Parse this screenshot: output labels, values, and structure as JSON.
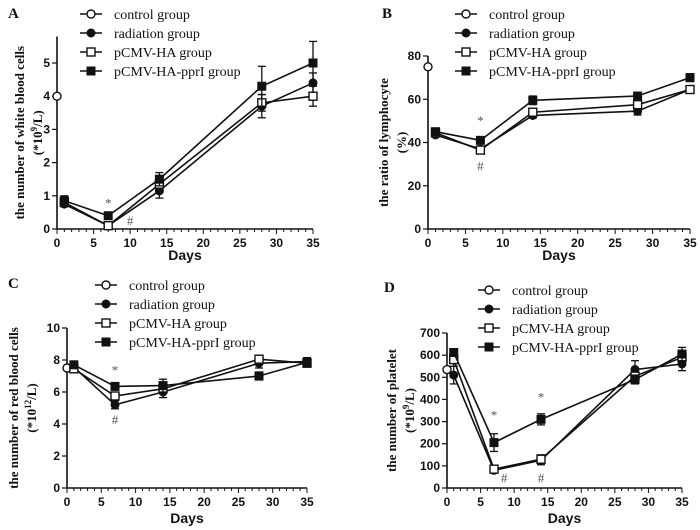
{
  "figure": {
    "legend": [
      "control group",
      "radiation group",
      "pCMV-HA group",
      "pCMV-HA-pprI group"
    ],
    "marker_styles": [
      "open-circle",
      "filled-circle",
      "open-square",
      "filled-square"
    ]
  },
  "chart_data": [
    {
      "panel": "A",
      "type": "line",
      "title": "",
      "xlabel": "Days",
      "ylabel_line1": "the number of white blood cells",
      "ylabel_line2": "(*10",
      "ylabel_sup": "9",
      "ylabel_tail": "/L)",
      "xlim": [
        0,
        35
      ],
      "ylim": [
        0,
        5.8
      ],
      "xticks": [
        0,
        5,
        10,
        15,
        20,
        25,
        30,
        35
      ],
      "yticks": [
        0,
        1,
        2,
        3,
        4,
        5
      ],
      "grid": false,
      "legend_position": "top-center",
      "series": [
        {
          "name": "control group",
          "x": [
            0
          ],
          "values": [
            4.0
          ],
          "err": [
            0
          ]
        },
        {
          "name": "radiation group",
          "x": [
            1,
            7,
            14,
            28,
            35
          ],
          "values": [
            0.75,
            0.1,
            1.15,
            3.7,
            4.4
          ],
          "err": [
            0.08,
            0.05,
            0.22,
            0.35,
            0.3
          ]
        },
        {
          "name": "pCMV-HA group",
          "x": [
            1,
            7,
            14,
            28,
            35
          ],
          "values": [
            0.8,
            0.1,
            1.35,
            3.8,
            4.0
          ],
          "err": [
            0.1,
            0.05,
            0.2,
            0.25,
            0.3
          ]
        },
        {
          "name": "pCMV-HA-pprI group",
          "x": [
            1,
            7,
            14,
            28,
            35
          ],
          "values": [
            0.85,
            0.4,
            1.5,
            4.3,
            5.0
          ],
          "err": [
            0.15,
            0.05,
            0.2,
            0.6,
            0.65
          ]
        }
      ],
      "annotations": [
        {
          "text": "*",
          "x": 7,
          "y": 0.65
        },
        {
          "text": "#",
          "x": 10,
          "y": 0.12
        }
      ]
    },
    {
      "panel": "B",
      "type": "line",
      "title": "",
      "xlabel": "Days",
      "ylabel_line1": "the ratio of lymphocyte",
      "ylabel_line2": "(%)",
      "ylabel_sup": "",
      "ylabel_tail": "",
      "xlim": [
        0,
        35
      ],
      "ylim": [
        0,
        80
      ],
      "xticks": [
        0,
        5,
        10,
        15,
        20,
        25,
        30,
        35
      ],
      "yticks": [
        0,
        20,
        40,
        60,
        80
      ],
      "grid": false,
      "legend_position": "top-center",
      "series": [
        {
          "name": "control group",
          "x": [
            0
          ],
          "values": [
            75
          ],
          "err": [
            0
          ]
        },
        {
          "name": "radiation group",
          "x": [
            1,
            7,
            14,
            28,
            35
          ],
          "values": [
            43.5,
            37,
            52.5,
            54.5,
            64.5
          ],
          "err": [
            1,
            1,
            1.2,
            1.8,
            1
          ]
        },
        {
          "name": "pCMV-HA group",
          "x": [
            1,
            7,
            14,
            28,
            35
          ],
          "values": [
            44.5,
            36.5,
            54,
            57.5,
            64.5
          ],
          "err": [
            1,
            1,
            1.5,
            1.5,
            1
          ]
        },
        {
          "name": "pCMV-HA-pprI group",
          "x": [
            1,
            7,
            14,
            28,
            35
          ],
          "values": [
            45,
            41,
            59.5,
            61.5,
            70
          ],
          "err": [
            1.2,
            1.2,
            2,
            1.2,
            1.8
          ]
        }
      ],
      "annotations": [
        {
          "text": "*",
          "x": 7,
          "y": 48
        },
        {
          "text": "#",
          "x": 7,
          "y": 27
        }
      ]
    },
    {
      "panel": "C",
      "type": "line",
      "title": "",
      "xlabel": "Days",
      "ylabel_line1": "the number of red blood cells",
      "ylabel_line2": "(*10",
      "ylabel_sup": "12",
      "ylabel_tail": "/L)",
      "xlim": [
        0,
        35
      ],
      "ylim": [
        0,
        10
      ],
      "xticks": [
        0,
        5,
        10,
        15,
        20,
        25,
        30,
        35
      ],
      "yticks": [
        0,
        2,
        4,
        6,
        8,
        10
      ],
      "grid": false,
      "legend_position": "top-center",
      "series": [
        {
          "name": "control group",
          "x": [
            0
          ],
          "values": [
            7.5
          ],
          "err": [
            0
          ]
        },
        {
          "name": "radiation group",
          "x": [
            1,
            7,
            14,
            28,
            35
          ],
          "values": [
            7.55,
            5.2,
            6.0,
            7.8,
            7.9
          ],
          "err": [
            0.1,
            0.25,
            0.35,
            0.3,
            0.25
          ]
        },
        {
          "name": "pCMV-HA group",
          "x": [
            1,
            7,
            14,
            28,
            35
          ],
          "values": [
            7.45,
            5.75,
            6.2,
            8.05,
            7.8
          ],
          "err": [
            0.1,
            0.12,
            0.2,
            0.12,
            0.15
          ]
        },
        {
          "name": "pCMV-HA-pprI group",
          "x": [
            1,
            7,
            14,
            28,
            35
          ],
          "values": [
            7.7,
            6.35,
            6.4,
            7.0,
            7.85
          ],
          "err": [
            0.1,
            0.1,
            0.4,
            0.25,
            0.2
          ]
        }
      ],
      "annotations": [
        {
          "text": "*",
          "x": 7,
          "y": 7.1
        },
        {
          "text": "#",
          "x": 7,
          "y": 4.0
        }
      ]
    },
    {
      "panel": "D",
      "type": "line",
      "title": "",
      "xlabel": "Days",
      "ylabel_line1": "the number of platelet",
      "ylabel_line2": "(*10",
      "ylabel_sup": "9",
      "ylabel_tail": "/L)",
      "xlim": [
        0,
        35
      ],
      "ylim": [
        0,
        700
      ],
      "xticks": [
        0,
        5,
        10,
        15,
        20,
        25,
        30,
        35
      ],
      "yticks": [
        0,
        100,
        200,
        300,
        400,
        500,
        600,
        700
      ],
      "grid": false,
      "legend_position": "top-center",
      "series": [
        {
          "name": "control group",
          "x": [
            0
          ],
          "values": [
            535
          ],
          "err": [
            0
          ]
        },
        {
          "name": "radiation group",
          "x": [
            1,
            7,
            14,
            28,
            35
          ],
          "values": [
            510,
            80,
            125,
            535,
            560
          ],
          "err": [
            40,
            10,
            20,
            40,
            30
          ]
        },
        {
          "name": "pCMV-HA group",
          "x": [
            1,
            7,
            14,
            28,
            35
          ],
          "values": [
            580,
            85,
            130,
            505,
            590
          ],
          "err": [
            30,
            10,
            20,
            20,
            25
          ]
        },
        {
          "name": "pCMV-HA-pprI group",
          "x": [
            1,
            7,
            14,
            28,
            35
          ],
          "values": [
            612,
            205,
            310,
            490,
            605
          ],
          "err": [
            15,
            40,
            25,
            20,
            30
          ]
        }
      ],
      "annotations": [
        {
          "text": "*",
          "x": 7,
          "y": 310
        },
        {
          "text": "*",
          "x": 14,
          "y": 390
        },
        {
          "text": "#",
          "x": 8.5,
          "y": 25
        },
        {
          "text": "#",
          "x": 14,
          "y": 25
        }
      ]
    }
  ]
}
